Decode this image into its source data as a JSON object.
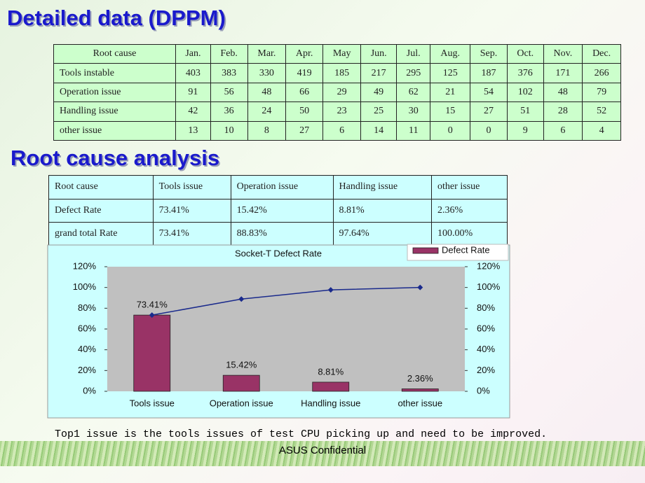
{
  "title1": "Detailed data (DPPM)",
  "dppm_table": {
    "header": [
      "Root cause",
      "Jan.",
      "Feb.",
      "Mar.",
      "Apr.",
      "May",
      "Jun.",
      "Jul.",
      "Aug.",
      "Sep.",
      "Oct.",
      "Nov.",
      "Dec."
    ],
    "rows": [
      [
        "Tools instable",
        403,
        383,
        330,
        419,
        185,
        217,
        295,
        125,
        187,
        376,
        171,
        266
      ],
      [
        "Operation issue",
        91,
        56,
        48,
        66,
        29,
        49,
        62,
        21,
        54,
        102,
        48,
        79
      ],
      [
        "Handling issue",
        42,
        36,
        24,
        50,
        23,
        25,
        30,
        15,
        27,
        51,
        28,
        52
      ],
      [
        "other issue",
        13,
        10,
        8,
        27,
        6,
        14,
        11,
        0,
        0,
        9,
        6,
        4
      ]
    ]
  },
  "title2": "Root cause analysis",
  "rca_table": {
    "header": [
      "Root cause",
      "Tools issue",
      "Operation issue",
      "Handling issue",
      "other issue"
    ],
    "rows": [
      [
        "Defect Rate",
        "73.41%",
        "15.42%",
        "8.81%",
        "2.36%"
      ],
      [
        "grand total Rate",
        "73.41%",
        "88.83%",
        "97.64%",
        "100.00%"
      ]
    ]
  },
  "chart_data": {
    "type": "bar",
    "title": "Socket-T Defect Rate",
    "categories": [
      "Tools issue",
      "Operation issue",
      "Handling issue",
      "other issue"
    ],
    "series": [
      {
        "name": "Defect Rate",
        "color": "#993366",
        "values": [
          73.41,
          15.42,
          8.81,
          2.36
        ],
        "value_labels": [
          "73.41%",
          "15.42%",
          "8.81%",
          "2.36%"
        ]
      },
      {
        "color": "#1a2a8c",
        "type": "line",
        "axis": "y2",
        "values": [
          73.41,
          88.83,
          97.64,
          100
        ]
      }
    ],
    "ylim": [
      0,
      120
    ],
    "yticks": [
      {
        "value": 0,
        "label": "0%"
      },
      {
        "value": 20,
        "label": "20%"
      },
      {
        "value": 40,
        "label": "40%"
      },
      {
        "value": 60,
        "label": "60%"
      },
      {
        "value": 80,
        "label": "80%"
      },
      {
        "value": 100,
        "label": "100%"
      },
      {
        "value": 120,
        "label": "120%"
      }
    ],
    "y2lim": [
      0,
      120
    ],
    "y2ticks": [
      {
        "value": 0,
        "label": "0%"
      },
      {
        "value": 20,
        "label": "20%"
      },
      {
        "value": 40,
        "label": "40%"
      },
      {
        "value": 60,
        "label": "60%"
      },
      {
        "value": 80,
        "label": "80%"
      },
      {
        "value": 100,
        "label": "100%"
      },
      {
        "value": 120,
        "label": "120%"
      }
    ],
    "grid": false,
    "legend": "top-right"
  },
  "footnote": "Top1 issue is the tools issues of test CPU picking up and need to be improved.",
  "footer": "ASUS Confidential"
}
